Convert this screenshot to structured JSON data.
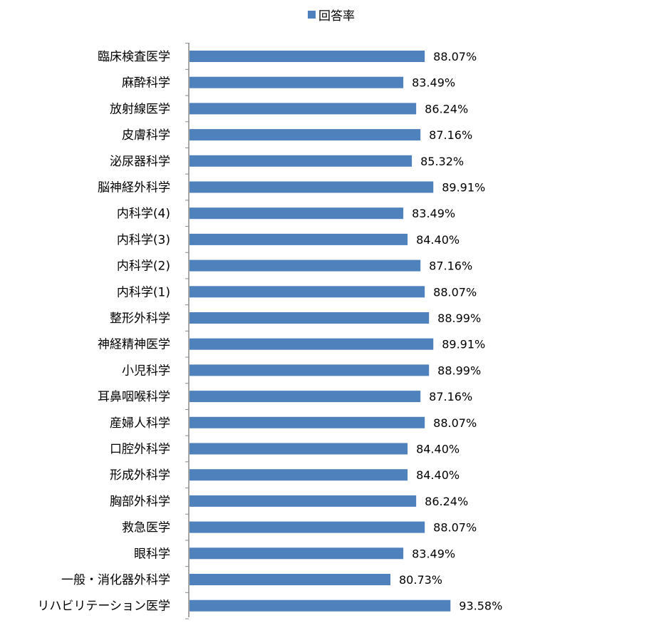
{
  "chart_data": {
    "type": "bar",
    "orientation": "horizontal",
    "categories": [
      "臨床検査医学",
      "麻酔科学",
      "放射線医学",
      "皮膚科学",
      "泌尿器科学",
      "脳神経外科学",
      "内科学(4)",
      "内科学(3)",
      "内科学(2)",
      "内科学(1)",
      "整形外科学",
      "神経精神医学",
      "小児科学",
      "耳鼻咽喉科学",
      "産婦人科学",
      "口腔外科学",
      "形成外科学",
      "胸部外科学",
      "救急医学",
      "眼科学",
      "一般・消化器外科学",
      "リハビリテーション医学"
    ],
    "series": [
      {
        "name": "回答率",
        "values": [
          88.07,
          83.49,
          86.24,
          87.16,
          85.32,
          89.91,
          83.49,
          84.4,
          87.16,
          88.07,
          88.99,
          89.91,
          88.99,
          87.16,
          88.07,
          84.4,
          84.4,
          86.24,
          88.07,
          83.49,
          80.73,
          93.58
        ],
        "data_labels": [
          "88.07%",
          "83.49%",
          "86.24%",
          "87.16%",
          "85.32%",
          "89.91%",
          "83.49%",
          "84.40%",
          "87.16%",
          "88.07%",
          "88.99%",
          "89.91%",
          "88.99%",
          "87.16%",
          "88.07%",
          "84.40%",
          "84.40%",
          "86.24%",
          "88.07%",
          "83.49%",
          "80.73%",
          "93.58%"
        ],
        "color": "#4f81bd"
      }
    ],
    "legend_position": "top",
    "grid": false,
    "title": "",
    "xlabel": "",
    "ylabel": ""
  }
}
